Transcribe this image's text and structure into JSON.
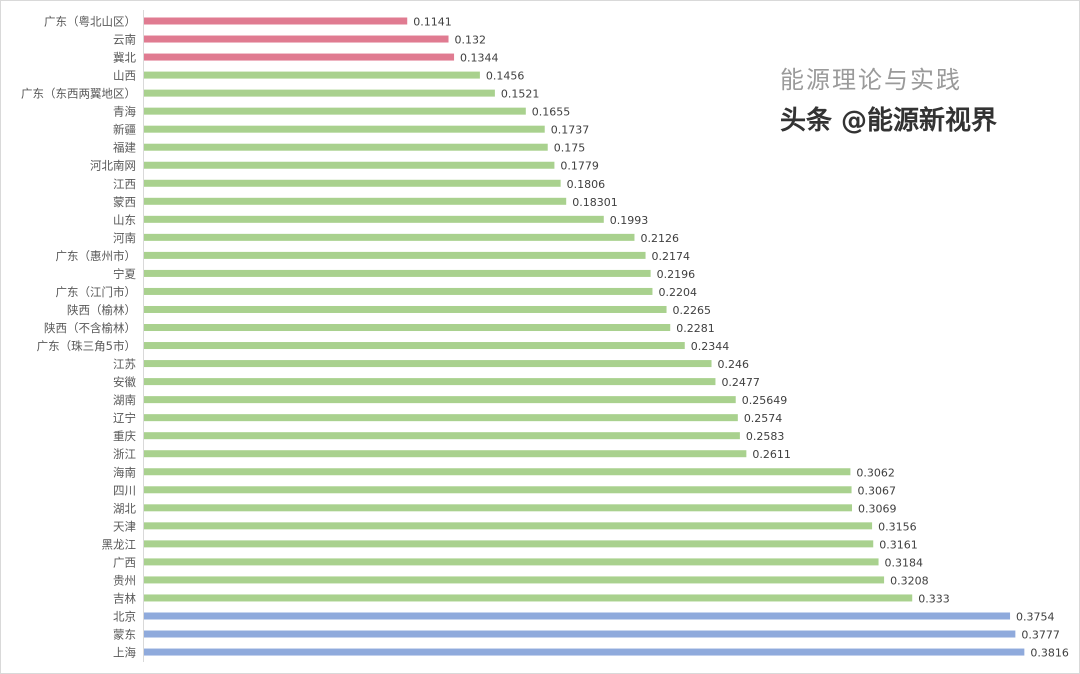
{
  "chart_data": {
    "type": "bar",
    "orientation": "horizontal",
    "title": "",
    "xlabel": "",
    "ylabel": "",
    "xlim": [
      0,
      0.4
    ],
    "grid": false,
    "legend": "none",
    "colors": {
      "low": "#E07B91",
      "mid": "#A9D18E",
      "high": "#8FAADC"
    },
    "categories": [
      "广东（粤北山区）",
      "云南",
      "冀北",
      "山西",
      "广东（东西两翼地区）",
      "青海",
      "新疆",
      "福建",
      "河北南网",
      "江西",
      "蒙西",
      "山东",
      "河南",
      "广东（惠州市）",
      "宁夏",
      "广东（江门市）",
      "陕西（榆林）",
      "陕西（不含榆林）",
      "广东（珠三角5市）",
      "江苏",
      "安徽",
      "湖南",
      "辽宁",
      "重庆",
      "浙江",
      "海南",
      "四川",
      "湖北",
      "天津",
      "黑龙江",
      "广西",
      "贵州",
      "吉林",
      "北京",
      "蒙东",
      "上海"
    ],
    "labels": [
      "0.1141",
      "0.132",
      "0.1344",
      "0.1456",
      "0.1521",
      "0.1655",
      "0.1737",
      "0.175",
      "0.1779",
      "0.1806",
      "0.18301",
      "0.1993",
      "0.2126",
      "0.2174",
      "0.2196",
      "0.2204",
      "0.2265",
      "0.2281",
      "0.2344",
      "0.246",
      "0.2477",
      "0.25649",
      "0.2574",
      "0.2583",
      "0.2611",
      "0.3062",
      "0.3067",
      "0.3069",
      "0.3156",
      "0.3161",
      "0.3184",
      "0.3208",
      "0.333",
      "0.3754",
      "0.3777",
      "0.3816"
    ],
    "values": [
      0.1141,
      0.132,
      0.1344,
      0.1456,
      0.1521,
      0.1655,
      0.1737,
      0.175,
      0.1779,
      0.1806,
      0.18301,
      0.1993,
      0.2126,
      0.2174,
      0.2196,
      0.2204,
      0.2265,
      0.2281,
      0.2344,
      0.246,
      0.2477,
      0.25649,
      0.2574,
      0.2583,
      0.2611,
      0.3062,
      0.3067,
      0.3069,
      0.3156,
      0.3161,
      0.3184,
      0.3208,
      0.333,
      0.3754,
      0.3777,
      0.3816
    ],
    "groups": [
      "low",
      "low",
      "low",
      "mid",
      "mid",
      "mid",
      "mid",
      "mid",
      "mid",
      "mid",
      "mid",
      "mid",
      "mid",
      "mid",
      "mid",
      "mid",
      "mid",
      "mid",
      "mid",
      "mid",
      "mid",
      "mid",
      "mid",
      "mid",
      "mid",
      "mid",
      "mid",
      "mid",
      "mid",
      "mid",
      "mid",
      "mid",
      "mid",
      "high",
      "high",
      "high"
    ]
  },
  "watermark": {
    "wechat": "能源理论与实践",
    "toutiao": "头条 @能源新视界"
  }
}
